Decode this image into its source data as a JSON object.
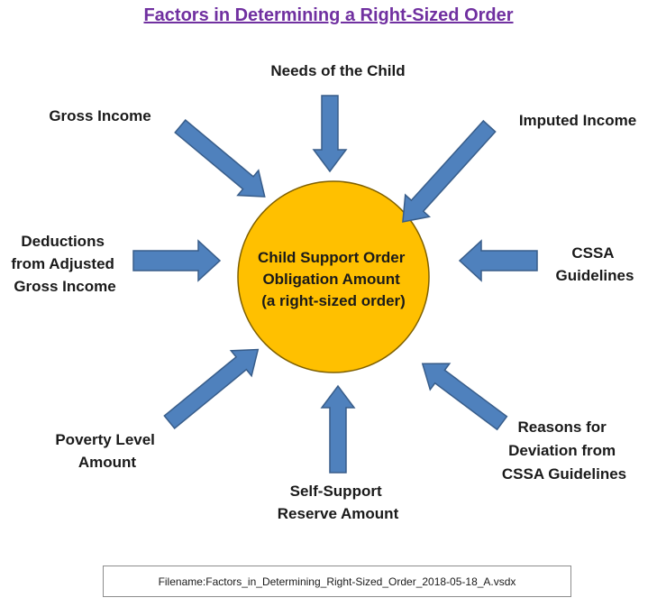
{
  "title": "Factors in Determining a Right-Sized Order",
  "center": {
    "lines": [
      "Child Support Order",
      "Obligation Amount",
      "(a right-sized order)"
    ]
  },
  "factors": {
    "needs_of_child": [
      "Needs of the Child"
    ],
    "gross_income": [
      "Gross Income"
    ],
    "imputed_income": [
      "Imputed Income"
    ],
    "deductions": [
      "Deductions",
      "from Adjusted",
      "Gross Income"
    ],
    "cssa_guidelines": [
      "CSSA",
      "Guidelines"
    ],
    "poverty_level": [
      "Poverty Level",
      "Amount"
    ],
    "self_support": [
      "Self-Support",
      "Reserve Amount"
    ],
    "deviation": [
      "Reasons for",
      "Deviation from",
      "CSSA Guidelines"
    ]
  },
  "filename": {
    "label": "Filename:",
    "value": "Factors_in_Determining_Right-Sized_Order_2018-05-18_A.vsdx"
  },
  "colors": {
    "title": "#7030a0",
    "circle_fill": "#ffc000",
    "circle_stroke": "#7f6000",
    "arrow_fill": "#4f81bd",
    "arrow_stroke": "#385d8a"
  }
}
